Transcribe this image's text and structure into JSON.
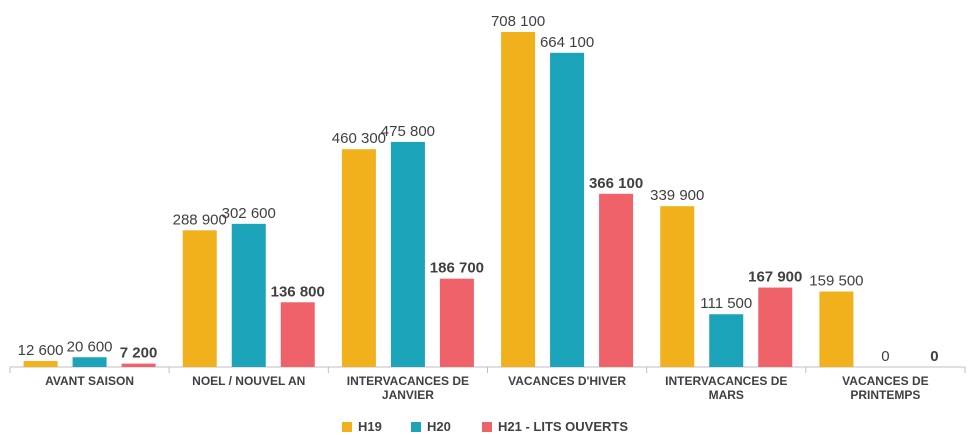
{
  "chart_data": {
    "type": "bar",
    "categories": [
      "AVANT SAISON",
      "NOEL / NOUVEL AN",
      "INTERVACANCES DE JANVIER",
      "VACANCES D'HIVER",
      "INTERVACANCES DE MARS",
      "VACANCES DE PRINTEMPS"
    ],
    "series": [
      {
        "name": "H19",
        "color": "#f0b11c",
        "values": [
          12600,
          288900,
          460300,
          708100,
          339900,
          159500
        ],
        "value_labels": [
          "12 600",
          "288 900",
          "460 300",
          "708 100",
          "339 900",
          "159 500"
        ]
      },
      {
        "name": "H20",
        "color": "#1ba3b9",
        "values": [
          20600,
          302600,
          475800,
          664100,
          111500,
          0
        ],
        "value_labels": [
          "20 600",
          "302 600",
          "475 800",
          "664 100",
          "111 500",
          "0"
        ]
      },
      {
        "name": "H21 - LITS OUVERTS",
        "color": "#f0626a",
        "values": [
          7200,
          136800,
          186700,
          366100,
          167900,
          0
        ],
        "value_labels": [
          "7 200",
          "136 800",
          "186 700",
          "366 100",
          "167 900",
          "0"
        ]
      }
    ]
  }
}
